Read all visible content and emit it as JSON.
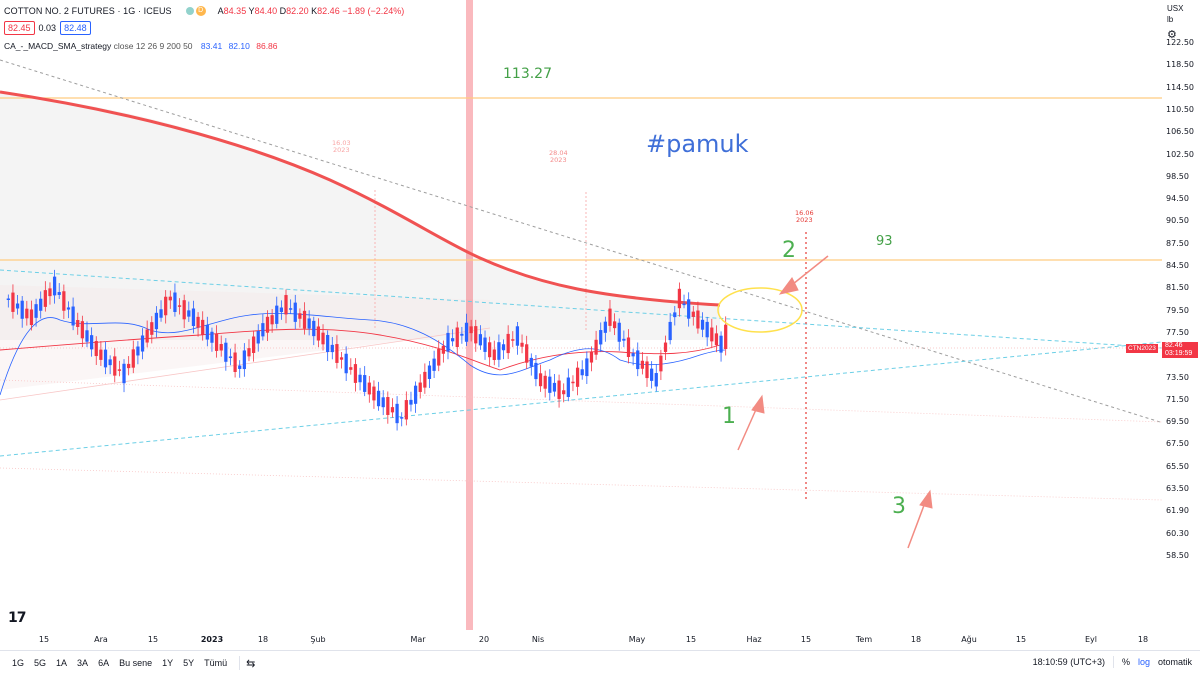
{
  "header": {
    "symbol": "COTTON NO. 2 FUTURES · 1G · ICEUS",
    "d_badge": "D",
    "ohlc": {
      "a_label": "A",
      "a": "84.35",
      "y_label": "Y",
      "y": "84.40",
      "d_label": "D",
      "d": "82.20",
      "k_label": "K",
      "k": "82.46",
      "change": "−1.89 (−2.24%)"
    },
    "sell_price": "82.45",
    "spread": "0.03",
    "buy_price": "82.48"
  },
  "indicator": {
    "name": "CA_-_MACD_SMA_strategy",
    "params": "close 12 26 9 200 50",
    "v1": "83.41",
    "v2": "82.10",
    "v3": "86.86"
  },
  "axis": {
    "currency": "USX",
    "unit": "lb",
    "y_ticks": [
      "122.50",
      "118.50",
      "114.50",
      "110.50",
      "106.50",
      "102.50",
      "98.50",
      "94.50",
      "90.50",
      "87.50",
      "84.50",
      "81.50",
      "79.50",
      "77.50",
      "75.50",
      "73.50",
      "71.50",
      "69.50",
      "67.50",
      "65.50",
      "63.50",
      "61.90",
      "60.30",
      "58.50"
    ],
    "x_ticks": [
      "15",
      "Ara",
      "15",
      "2023",
      "18",
      "Şub",
      "Mar",
      "20",
      "Nis",
      "May",
      "15",
      "Haz",
      "15",
      "Tem",
      "18",
      "Ağu",
      "15",
      "Eyl",
      "18"
    ]
  },
  "annotations": {
    "level_113": "113.27",
    "hashtag": "#pamuk",
    "level_93": "93",
    "n1": "1",
    "n2": "2",
    "n3": "3",
    "date1": "16.03\n2023",
    "date2": "28.04\n2023",
    "date3": "16.06\n2023"
  },
  "last_price": {
    "symbol": "CTN2023",
    "price": "82.46",
    "countdown": "03:19:59"
  },
  "bottom_bar": {
    "ranges": [
      "1G",
      "5G",
      "1A",
      "3A",
      "6A",
      "Bu sene",
      "1Y",
      "5Y",
      "Tümü"
    ],
    "time": "18:10:59 (UTC+3)",
    "percent": "%",
    "log": "log",
    "auto": "otomatik"
  },
  "colors": {
    "up": "#2962ff",
    "down": "#f23645",
    "sma200": "#f05252",
    "orange_line": "#ffcc80",
    "dashed_blue": "#5ec5e0",
    "annotation_green": "#4caf50",
    "hashtag_blue": "#3f6fd8"
  },
  "chart_data": {
    "type": "candlestick",
    "title": "COTTON NO. 2 FUTURES · 1G · ICEUS",
    "xlabel": "",
    "ylabel": "",
    "ylim": [
      57,
      124
    ],
    "horizontal_levels": [
      113.27,
      93
    ],
    "candles_sampled": [
      {
        "o": 84.0,
        "c": 86.5
      },
      {
        "o": 86.5,
        "c": 85.0
      },
      {
        "o": 85.0,
        "c": 87.5
      },
      {
        "o": 87.5,
        "c": 84.5
      },
      {
        "o": 84.5,
        "c": 82.0
      },
      {
        "o": 82.0,
        "c": 80.5
      },
      {
        "o": 80.5,
        "c": 83.5
      },
      {
        "o": 83.5,
        "c": 86.5
      },
      {
        "o": 86.5,
        "c": 85.0
      },
      {
        "o": 85.0,
        "c": 83.0
      },
      {
        "o": 83.0,
        "c": 81.0
      },
      {
        "o": 81.0,
        "c": 84.0
      },
      {
        "o": 84.0,
        "c": 86.0
      },
      {
        "o": 86.0,
        "c": 84.5
      },
      {
        "o": 84.5,
        "c": 82.5
      },
      {
        "o": 82.5,
        "c": 80.5
      },
      {
        "o": 80.5,
        "c": 78.5
      },
      {
        "o": 78.5,
        "c": 77.0
      },
      {
        "o": 77.0,
        "c": 80.0
      },
      {
        "o": 80.0,
        "c": 83.0
      },
      {
        "o": 83.0,
        "c": 84.0
      },
      {
        "o": 84.0,
        "c": 82.0
      },
      {
        "o": 82.0,
        "c": 83.5
      },
      {
        "o": 83.5,
        "c": 80.0
      },
      {
        "o": 80.0,
        "c": 79.0
      },
      {
        "o": 79.0,
        "c": 81.0
      },
      {
        "o": 81.0,
        "c": 85.0
      },
      {
        "o": 85.0,
        "c": 82.0
      },
      {
        "o": 82.0,
        "c": 80.0
      },
      {
        "o": 80.0,
        "c": 86.5
      },
      {
        "o": 86.5,
        "c": 84.4
      },
      {
        "o": 84.4,
        "c": 82.46
      }
    ]
  }
}
